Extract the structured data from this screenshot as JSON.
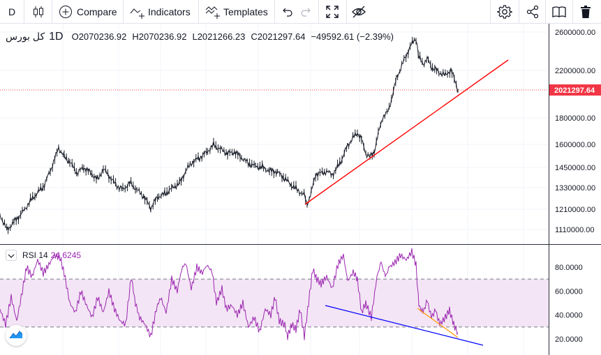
{
  "toolbar": {
    "interval": "D",
    "compare_label": "Compare",
    "indicators_label": "Indicators",
    "templates_label": "Templates"
  },
  "legend": {
    "symbol": "کل بورس",
    "timeframe": "1D",
    "open": "O2070236.92",
    "high": "H2070236.92",
    "low": "L2021266.23",
    "close": "C2021297.64",
    "change": "−49592.61 (−2.39%)"
  },
  "price_axis": {
    "ticks": [
      "2600000.00",
      "2200000.00",
      "1800000.00",
      "1600000.00",
      "1450000.00",
      "1330000.00",
      "1210000.00",
      "1110000.00"
    ],
    "last_price": "2021297.64"
  },
  "rsi": {
    "label": "RSI 14",
    "value": "24.6245",
    "ticks": [
      "80.0000",
      "60.0000",
      "40.0000",
      "20.0000"
    ],
    "upper_band": 70,
    "lower_band": 30
  },
  "colors": {
    "candle_line": "#131722",
    "trendline": "#ff0000",
    "rsi_line": "#9c27b0",
    "rsi_band_fill": "#f3e5f5",
    "rsi_trendline_blue": "#0000ff",
    "rsi_trendline_orange": "#ff9800",
    "last_price_tag": "#f23645",
    "grid": "#f0f3fa"
  },
  "icons": [
    "candles-icon",
    "plus-circle-icon",
    "indicators-icon",
    "templates-icon",
    "undo-icon",
    "redo-icon",
    "fullscreen-icon",
    "hide-icon",
    "settings-icon",
    "share-icon",
    "snapshot-icon",
    "trash-icon",
    "tradingview-logo-icon"
  ]
}
